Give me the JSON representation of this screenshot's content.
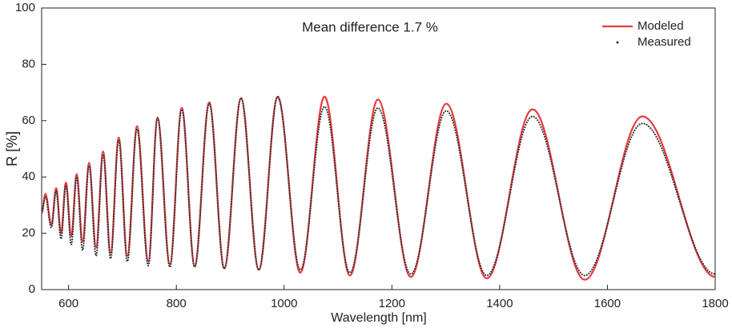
{
  "chart_data": {
    "type": "line",
    "annotation": "Mean difference 1.7 %",
    "x_label": "Wavelength [nm]",
    "y_label": "R [%]",
    "x": [
      550,
      557,
      568,
      577,
      586,
      595,
      605,
      615,
      626,
      638,
      651,
      664,
      678,
      693,
      709,
      727,
      748,
      765,
      788,
      810,
      834,
      861,
      889,
      920,
      953,
      988,
      1030,
      1075,
      1122,
      1174,
      1235,
      1301,
      1376,
      1461,
      1558,
      1665,
      1800
    ],
    "series": [
      {
        "name": "Modeled",
        "color": "#e8383d",
        "style": "line",
        "values": [
          27,
          34,
          23,
          36,
          20,
          38,
          19,
          41,
          17,
          45,
          15,
          49,
          13,
          54,
          12,
          58,
          10,
          61,
          9,
          64.5,
          8.5,
          66.5,
          7.5,
          68,
          7,
          68.5,
          6,
          68.5,
          5,
          67.5,
          4.5,
          66,
          4,
          64,
          3.5,
          61.5,
          4.5
        ]
      },
      {
        "name": "Measured",
        "color": "#333333",
        "style": "dots",
        "values": [
          28,
          33,
          22,
          35,
          18,
          37,
          16,
          40,
          14,
          44,
          12,
          48,
          11,
          53,
          10,
          57,
          8.5,
          61,
          8,
          64,
          8,
          66,
          7.5,
          68,
          7,
          68.5,
          7,
          65,
          6,
          64.5,
          5.5,
          63.5,
          5,
          61.5,
          5,
          59,
          5.5
        ]
      }
    ],
    "xlim": [
      550,
      1800
    ],
    "xticks": [
      600,
      800,
      1000,
      1200,
      1400,
      1600,
      1800
    ],
    "ylim": [
      0,
      100
    ],
    "yticks": [
      0,
      20,
      40,
      60,
      80,
      100
    ]
  }
}
